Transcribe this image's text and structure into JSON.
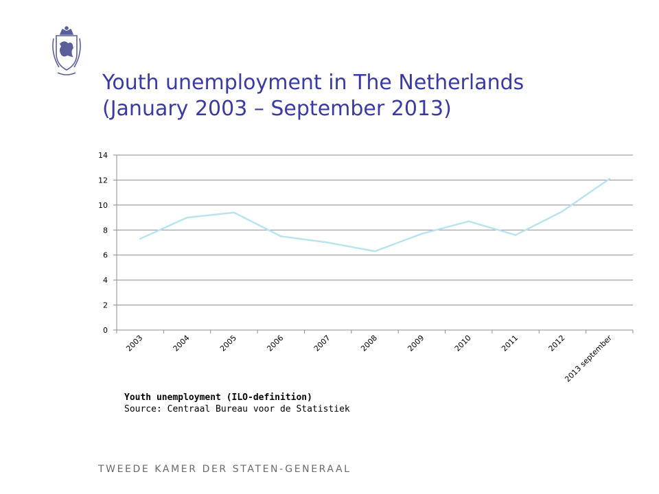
{
  "slide": {
    "title_line1": "Youth unemployment in The Netherlands",
    "title_line2": "(January 2003 – September 2013)",
    "caption_bold": "Youth unemployment (ILO-definition)",
    "caption_source": "Source: Centraal Bureau voor de Statistiek",
    "footer": "TWEEDE KAMER DER STATEN-GENERAAL",
    "colors": {
      "title": "#3a3aa3",
      "line": "#b9e3ee",
      "grid": "#8c8c8c",
      "logo": "#5a5f9a"
    }
  },
  "chart_data": {
    "type": "line",
    "title": "",
    "xlabel": "",
    "ylabel": "",
    "categories": [
      "2003",
      "2004",
      "2005",
      "2006",
      "2007",
      "2008",
      "2009",
      "2010",
      "2011",
      "2012",
      "2013 september"
    ],
    "series": [
      {
        "values": [
          7.3,
          9.0,
          9.4,
          7.5,
          7.0,
          6.3,
          7.7,
          8.7,
          7.6,
          9.5,
          12.1
        ]
      }
    ],
    "ylim": [
      0,
      14
    ],
    "yticks": [
      0,
      2,
      4,
      6,
      8,
      10,
      12,
      14
    ],
    "grid": true,
    "legend": "none"
  }
}
